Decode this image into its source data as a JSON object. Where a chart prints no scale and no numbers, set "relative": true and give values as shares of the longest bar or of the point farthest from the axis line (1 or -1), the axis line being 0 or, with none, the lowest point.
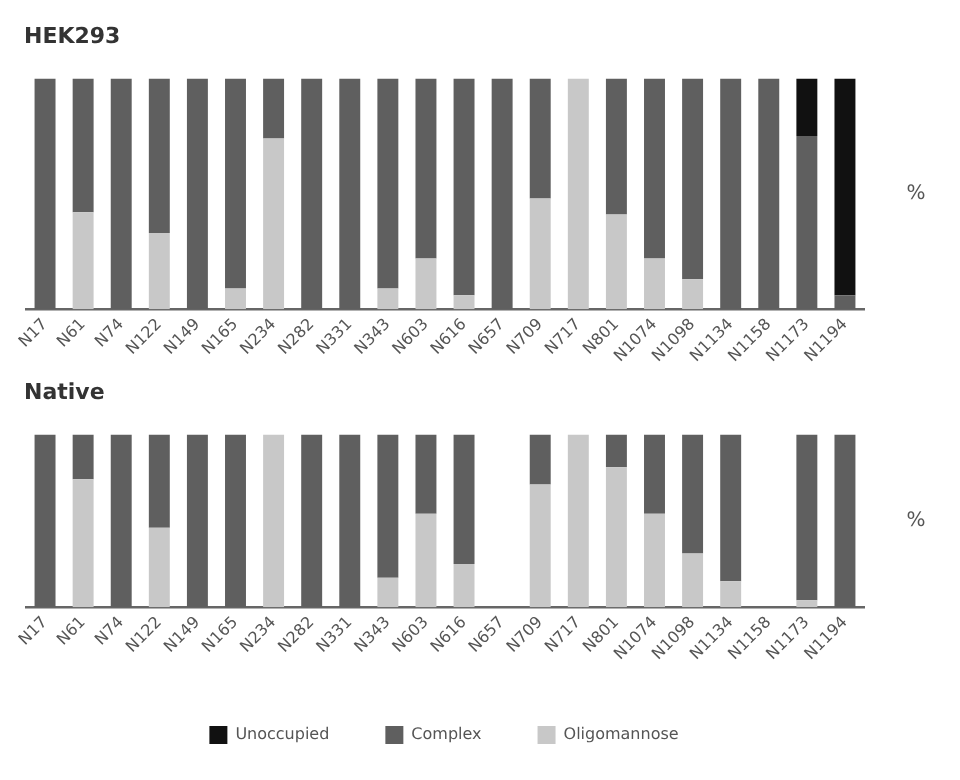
{
  "chart_data": [
    {
      "type": "bar",
      "title": "HEK293",
      "ylabel": "%",
      "relative": true,
      "stacked": true,
      "legend": false,
      "grid": false,
      "categories": [
        "N17",
        "N61",
        "N74",
        "N122",
        "N149",
        "N165",
        "N234",
        "N282",
        "N331",
        "N343",
        "N603",
        "N616",
        "N657",
        "N709",
        "N717",
        "N801",
        "N1074",
        "N1098",
        "N1134",
        "N1158",
        "N1173",
        "N1194"
      ],
      "series": [
        {
          "color": "#c8c8c8",
          "values": [
            0,
            0.42,
            0,
            0.33,
            0,
            0.09,
            0.74,
            0,
            0,
            0.09,
            0.22,
            0.06,
            0,
            0.48,
            1,
            0.41,
            0.22,
            0.13,
            0,
            0,
            0,
            0
          ]
        },
        {
          "color": "#5f5f5f",
          "values": [
            1,
            0.58,
            1,
            0.67,
            1,
            0.91,
            0.26,
            1,
            1,
            0.91,
            0.78,
            0.94,
            1,
            0.52,
            0,
            0.59,
            0.78,
            0.87,
            1,
            1,
            0.75,
            0.06
          ]
        },
        {
          "color": "#111111",
          "values": [
            0,
            0,
            0,
            0,
            0,
            0,
            0,
            0,
            0,
            0,
            0,
            0,
            0,
            0,
            0,
            0,
            0,
            0,
            0,
            0,
            0.25,
            0.94
          ]
        }
      ]
    },
    {
      "type": "bar",
      "title": "Native",
      "ylabel": "%",
      "relative": true,
      "stacked": true,
      "legend": "bottom",
      "grid": false,
      "categories": [
        "N17",
        "N61",
        "N74",
        "N122",
        "N149",
        "N165",
        "N234",
        "N282",
        "N331",
        "N343",
        "N603",
        "N616",
        "N657",
        "N709",
        "N717",
        "N801",
        "N1074",
        "N1098",
        "N1134",
        "N1158",
        "N1173",
        "N1194"
      ],
      "series": [
        {
          "name": "Oligomannose",
          "color": "#c8c8c8",
          "values": [
            0,
            0.74,
            0,
            0.46,
            0,
            0,
            1,
            0,
            0,
            0.17,
            0.54,
            0.25,
            null,
            0.71,
            1,
            0.81,
            0.54,
            0.31,
            0.15,
            null,
            0.04,
            0
          ]
        },
        {
          "name": "Complex",
          "color": "#5f5f5f",
          "values": [
            1,
            0.26,
            1,
            0.54,
            1,
            1,
            0,
            1,
            1,
            0.83,
            0.46,
            0.75,
            null,
            0.29,
            0,
            0.19,
            0.46,
            0.69,
            0.85,
            null,
            0.96,
            1
          ]
        },
        {
          "name": "Unoccupied",
          "color": "#111111",
          "values": [
            0,
            0,
            0,
            0,
            0,
            0,
            0,
            0,
            0,
            0,
            0,
            0,
            null,
            0,
            0,
            0,
            0,
            0,
            0,
            null,
            0,
            0
          ]
        }
      ]
    }
  ]
}
